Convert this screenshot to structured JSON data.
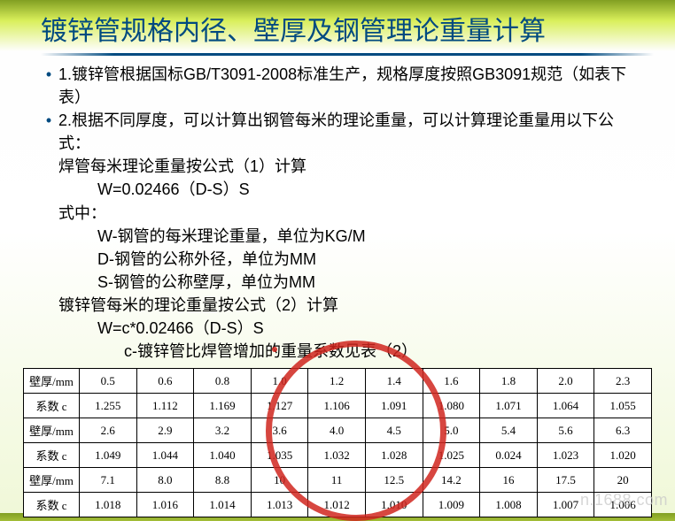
{
  "title": "镀锌管规格内径、壁厚及钢管理论重量计算",
  "bullets": [
    "1.镀锌管根据国标GB/T3091-2008标准生产，规格厚度按照GB3091规范（如表下表）",
    "2.根据不同厚度，可以计算出钢管每米的理论重量，可以计算理论重量用以下公式："
  ],
  "lines": {
    "l1": "焊管每米理论重量按公式（1）计算",
    "l2": "W=0.02466（D-S）S",
    "l3": "式中：",
    "l4": "W-钢管的每米理论重量，单位为KG/M",
    "l5": "D-钢管的公称外径，单位为MM",
    "l6": "S-钢管的公称壁厚，单位为MM",
    "l7": "镀锌管每米的理论重量按公式（2）计算",
    "l8": "W=c*0.02466（D-S）S",
    "l9": "c-镀锌管比焊管增加的重量系数见表（2）"
  },
  "table": {
    "row_headers": [
      "壁厚/mm",
      "系数 c",
      "壁厚/mm",
      "系数 c",
      "壁厚/mm",
      "系数 c"
    ],
    "rows": [
      [
        "0.5",
        "0.6",
        "0.8",
        "1.0",
        "1.2",
        "1.4",
        "1.6",
        "1.8",
        "2.0",
        "2.3"
      ],
      [
        "1.255",
        "1.112",
        "1.169",
        "1.127",
        "1.106",
        "1.091",
        "1.080",
        "1.071",
        "1.064",
        "1.055"
      ],
      [
        "2.6",
        "2.9",
        "3.2",
        "3.6",
        "4.0",
        "4.5",
        "5.0",
        "5.4",
        "5.6",
        "6.3"
      ],
      [
        "1.049",
        "1.044",
        "1.040",
        "1.035",
        "1.032",
        "1.028",
        "1.025",
        "0.024",
        "1.023",
        "1.020"
      ],
      [
        "7.1",
        "8.0",
        "8.8",
        "10",
        "11",
        "12.5",
        "14.2",
        "16",
        "17.5",
        "20"
      ],
      [
        "1.018",
        "1.016",
        "1.014",
        "1.013",
        "1.012",
        "1.010",
        "1.009",
        "1.008",
        "1.007",
        "1.006"
      ]
    ]
  },
  "watermark": "n.1688.com",
  "colors": {
    "title": "#004a80",
    "stamp": "#d0261e"
  }
}
